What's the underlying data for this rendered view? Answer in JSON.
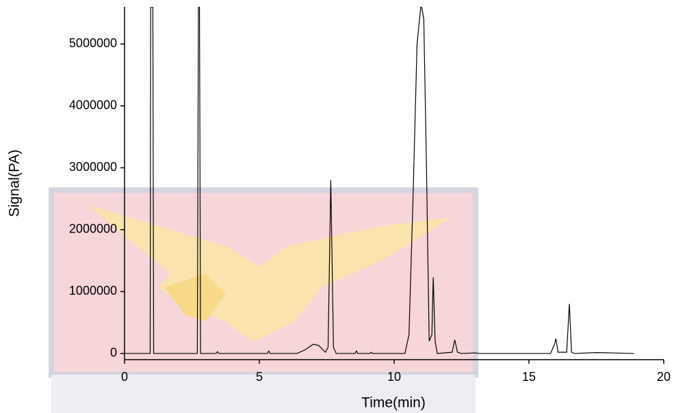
{
  "chart_data": {
    "type": "line",
    "x_label": "Time(min)",
    "y_label": "Signal(PA)",
    "xlim": [
      0,
      20
    ],
    "xticks": [
      0,
      5,
      10,
      15,
      20
    ],
    "ylim": [
      -100000,
      5600000
    ],
    "yticks": [
      0,
      1000000,
      2000000,
      3000000,
      4000000,
      5000000
    ],
    "series": [
      {
        "color": "#000000",
        "x": [
          0,
          0.95,
          0.97,
          1.0,
          1.05,
          1.08,
          2.7,
          2.74,
          2.78,
          2.82,
          3.4,
          3.45,
          3.5,
          5.3,
          5.35,
          5.4,
          6.4,
          6.7,
          7.0,
          7.2,
          7.45,
          7.55,
          7.65,
          7.75,
          7.85,
          8.55,
          8.6,
          8.65,
          9.1,
          9.15,
          9.2,
          10.4,
          10.55,
          10.7,
          10.85,
          11.0,
          11.1,
          11.2,
          11.3,
          11.4,
          11.45,
          11.52,
          11.6,
          12.15,
          12.25,
          12.35,
          12.5,
          13.0,
          13.2,
          15.8,
          15.95,
          16.0,
          16.08,
          16.4,
          16.5,
          16.58,
          16.7,
          17.5,
          18.0,
          18.9
        ],
        "values": [
          0,
          0,
          5600000,
          5600000,
          5600000,
          0,
          0,
          5600000,
          5600000,
          0,
          0,
          30000,
          0,
          0,
          40000,
          0,
          0,
          60000,
          150000,
          130000,
          20000,
          100000,
          2800000,
          100000,
          0,
          0,
          40000,
          0,
          0,
          20000,
          0,
          0,
          300000,
          2500000,
          5000000,
          5650000,
          5400000,
          3000000,
          200000,
          300000,
          1230000,
          200000,
          0,
          20000,
          220000,
          20000,
          0,
          10000,
          0,
          0,
          150000,
          240000,
          20000,
          20000,
          800000,
          20000,
          0,
          15000,
          10000,
          0
        ]
      }
    ]
  }
}
